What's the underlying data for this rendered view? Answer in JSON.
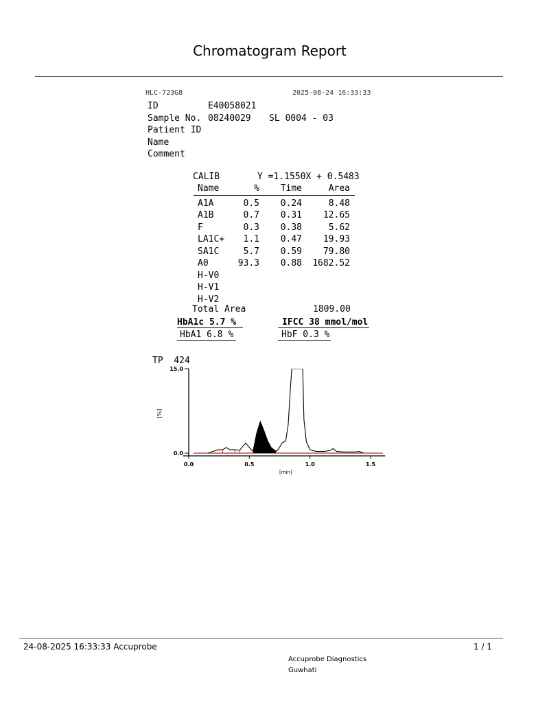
{
  "title": "Chromatogram Report",
  "instrument": {
    "model": "HLC-723G8",
    "datetime": "2025-08-24 16:33:33"
  },
  "sample": {
    "id_label": "ID",
    "id_value": "E40058021",
    "sample_no_label": "Sample No.",
    "sample_no_value": "08240029",
    "sample_position": "SL 0004 - 03",
    "patient_id_label": "Patient ID",
    "name_label": "Name",
    "comment_label": "Comment"
  },
  "calibration": {
    "label": "CALIB",
    "equation": "Y =1.1550X + 0.5483"
  },
  "table": {
    "headers": [
      "Name",
      "%",
      "Time",
      "Area"
    ],
    "rows": [
      [
        "A1A",
        "0.5",
        "0.24",
        "8.48"
      ],
      [
        "A1B",
        "0.7",
        "0.31",
        "12.65"
      ],
      [
        "F",
        "0.3",
        "0.38",
        "5.62"
      ],
      [
        "LA1C+",
        "1.1",
        "0.47",
        "19.93"
      ],
      [
        "SA1C",
        "5.7",
        "0.59",
        "79.80"
      ],
      [
        "A0",
        "93.3",
        "0.88",
        "1682.52"
      ],
      [
        "H-V0",
        "",
        "",
        ""
      ],
      [
        "H-V1",
        "",
        "",
        ""
      ],
      [
        "H-V2",
        "",
        "",
        ""
      ]
    ],
    "total_label": "Total Area",
    "total_value": "1809.00"
  },
  "summary": {
    "hba1c": "HbA1c 5.7 %",
    "ifcc": "IFCC 38 mmol/mol",
    "hba1": "HbA1 6.8 %",
    "hbf": "HbF 0.3 %"
  },
  "chart_data": {
    "type": "line",
    "title": "TP  424",
    "xlabel": "[min]",
    "ylabel": "[%]",
    "xlim": [
      0.0,
      1.6
    ],
    "ylim": [
      0.0,
      15.0
    ],
    "x_ticks": [
      "0.0",
      "0.5",
      "1.0",
      "1.5"
    ],
    "y_ticks": [
      "0.0",
      "15.0"
    ],
    "x": [
      0.16,
      0.2,
      0.24,
      0.28,
      0.31,
      0.34,
      0.38,
      0.42,
      0.45,
      0.47,
      0.5,
      0.53,
      0.56,
      0.59,
      0.62,
      0.65,
      0.68,
      0.72,
      0.74,
      0.77,
      0.8,
      0.82,
      0.84,
      0.85,
      0.94,
      0.95,
      0.97,
      1.0,
      1.05,
      1.12,
      1.17,
      1.19,
      1.22,
      1.28,
      1.38,
      1.4,
      1.44
    ],
    "y": [
      0.0,
      0.3,
      0.6,
      0.6,
      1.0,
      0.6,
      0.6,
      0.5,
      1.3,
      1.8,
      1.0,
      0.3,
      3.5,
      5.6,
      4.0,
      2.2,
      1.0,
      0.3,
      0.7,
      1.8,
      2.2,
      5.0,
      12.0,
      16.0,
      16.0,
      6.0,
      2.0,
      0.6,
      0.3,
      0.3,
      0.5,
      0.8,
      0.3,
      0.2,
      0.2,
      0.3,
      0.1
    ],
    "shaded_peak": {
      "name": "SA1C",
      "from": 0.53,
      "to": 0.72
    },
    "baseline_color": "#cc2222",
    "trace_color": "#000000"
  },
  "footer": {
    "printed": "24-08-2025 16:33:33  Accuprobe",
    "page": "1 / 1",
    "lab_name": "Accuprobe Diagnostics",
    "lab_city": "Guwhati"
  }
}
